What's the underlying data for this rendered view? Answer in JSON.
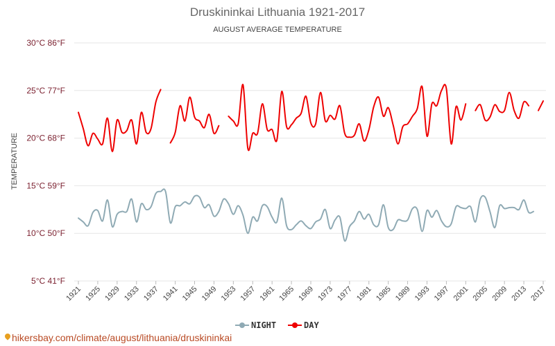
{
  "colors": {
    "night": "#8faab4",
    "day": "#ee0000",
    "grid": "#e6e6e6"
  },
  "watermark_icon": "map-pin-icon",
  "watermark_text": "hikersbay.com/climate/august/lithuania/druskininkai",
  "chart_data": {
    "type": "line",
    "title": "Druskininkai Lithuania 1921-2017",
    "subtitle": "AUGUST AVERAGE TEMPERATURE",
    "ylabel": "TEMPERATURE",
    "xlabel": "",
    "ylim": [
      5,
      30
    ],
    "yticks": [
      {
        "value": 30,
        "label": "30°C 86°F"
      },
      {
        "value": 25,
        "label": "25°C 77°F"
      },
      {
        "value": 20,
        "label": "20°C 68°F"
      },
      {
        "value": 15,
        "label": "15°C 59°F"
      },
      {
        "value": 10,
        "label": "10°C 50°F"
      },
      {
        "value": 5,
        "label": "5°C 41°F"
      }
    ],
    "xticks": [
      "1921",
      "1925",
      "1929",
      "1933",
      "1937",
      "1941",
      "1945",
      "1949",
      "1953",
      "1957",
      "1961",
      "1965",
      "1969",
      "1973",
      "1977",
      "1981",
      "1985",
      "1989",
      "1993",
      "1997",
      "2001",
      "2005",
      "2009",
      "2013",
      "2017"
    ],
    "x": [
      1921,
      1922,
      1923,
      1924,
      1925,
      1926,
      1927,
      1928,
      1929,
      1930,
      1931,
      1932,
      1933,
      1934,
      1935,
      1936,
      1937,
      1938,
      1939,
      1940,
      1941,
      1942,
      1943,
      1944,
      1945,
      1946,
      1947,
      1948,
      1949,
      1950,
      1951,
      1952,
      1953,
      1954,
      1955,
      1956,
      1957,
      1958,
      1959,
      1960,
      1961,
      1962,
      1963,
      1964,
      1965,
      1966,
      1967,
      1968,
      1969,
      1970,
      1971,
      1972,
      1973,
      1974,
      1975,
      1976,
      1977,
      1978,
      1979,
      1980,
      1981,
      1982,
      1983,
      1984,
      1985,
      1986,
      1987,
      1988,
      1989,
      1990,
      1991,
      1992,
      1993,
      1994,
      1995,
      1996,
      1997,
      1998,
      1999,
      2000,
      2001,
      2002,
      2003,
      2004,
      2005,
      2006,
      2007,
      2008,
      2009,
      2010,
      2011,
      2012,
      2013,
      2014,
      2015,
      2016,
      2017
    ],
    "legend": {
      "placement": "bottom-center"
    },
    "grid": true,
    "series": [
      {
        "name": "NIGHT",
        "values": [
          11.6,
          11.2,
          10.8,
          12.2,
          12.4,
          11.3,
          13.5,
          10.7,
          12.0,
          12.3,
          12.3,
          13.6,
          11.2,
          13.1,
          12.5,
          12.8,
          14.2,
          14.4,
          14.4,
          11.1,
          12.8,
          12.9,
          13.3,
          13.1,
          13.9,
          13.8,
          12.7,
          13.0,
          11.8,
          12.3,
          13.6,
          13.1,
          12.0,
          12.9,
          11.9,
          10.0,
          11.7,
          11.3,
          12.9,
          12.8,
          11.7,
          11.2,
          13.7,
          10.8,
          10.4,
          10.9,
          11.3,
          10.8,
          10.5,
          11.2,
          11.5,
          12.5,
          10.5,
          11.4,
          11.7,
          9.2,
          10.7,
          11.3,
          12.3,
          11.5,
          12.0,
          10.9,
          10.9,
          13.0,
          10.6,
          10.4,
          11.4,
          11.3,
          11.4,
          12.6,
          12.5,
          10.2,
          12.4,
          11.7,
          12.4,
          11.3,
          10.7,
          11.0,
          12.8,
          12.7,
          12.6,
          12.8,
          11.2,
          13.6,
          13.8,
          12.3,
          10.6,
          12.9,
          12.6,
          12.7,
          12.7,
          12.5,
          13.5,
          12.2,
          12.3,
          null,
          null
        ],
        "color": "#8faab4"
      },
      {
        "name": "DAY",
        "values": [
          22.7,
          21.0,
          19.2,
          20.5,
          19.9,
          19.4,
          22.1,
          18.6,
          21.9,
          20.6,
          20.8,
          21.9,
          19.4,
          22.7,
          20.6,
          21.0,
          23.8,
          25.1,
          null,
          19.5,
          20.6,
          23.4,
          21.8,
          24.3,
          22.2,
          21.8,
          21.1,
          22.5,
          20.5,
          21.3,
          null,
          22.3,
          21.8,
          21.5,
          25.6,
          18.9,
          20.5,
          20.5,
          23.6,
          20.9,
          20.9,
          19.8,
          24.9,
          21.2,
          21.4,
          22.1,
          22.6,
          24.4,
          21.6,
          21.5,
          24.8,
          21.8,
          22.4,
          22.0,
          23.4,
          20.5,
          20.1,
          20.3,
          21.5,
          19.7,
          20.9,
          23.3,
          24.3,
          22.3,
          23.2,
          21.4,
          19.4,
          21.2,
          21.5,
          22.3,
          23.1,
          25.4,
          20.2,
          23.6,
          23.4,
          25.0,
          25.2,
          19.4,
          23.3,
          21.9,
          23.6,
          null,
          22.9,
          23.5,
          21.9,
          22.2,
          23.5,
          22.8,
          22.9,
          24.8,
          22.9,
          22.1,
          23.8,
          23.4,
          null,
          22.9,
          23.9
        ],
        "color": "#ee0000"
      }
    ]
  }
}
